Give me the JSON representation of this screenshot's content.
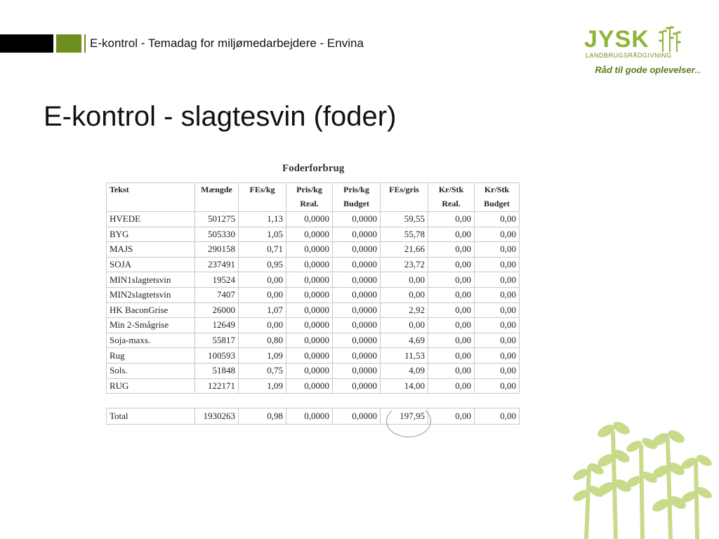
{
  "header": {
    "title": "E-kontrol - Temadag for miljømedarbejdere - Envina"
  },
  "logo": {
    "main": "JYSK",
    "sub": "LANDBRUGSRÅDGIVNING",
    "tagline": "Råd til gode oplevelser",
    "tagline_suffix": "..."
  },
  "slide": {
    "title": "E-kontrol - slagtesvin (foder)"
  },
  "table": {
    "caption": "Foderforbrug",
    "columns": [
      {
        "l1": "Tekst",
        "l2": ""
      },
      {
        "l1": "Mængde",
        "l2": ""
      },
      {
        "l1": "FEs/kg",
        "l2": ""
      },
      {
        "l1": "Pris/kg",
        "l2": "Real."
      },
      {
        "l1": "Pris/kg",
        "l2": "Budget"
      },
      {
        "l1": "FEs/gris",
        "l2": ""
      },
      {
        "l1": "Kr/Stk",
        "l2": "Real."
      },
      {
        "l1": "Kr/Stk",
        "l2": "Budget"
      }
    ],
    "rows": [
      [
        "HVEDE",
        "501275",
        "1,13",
        "0,0000",
        "0,0000",
        "59,55",
        "0,00",
        "0,00"
      ],
      [
        "BYG",
        "505330",
        "1,05",
        "0,0000",
        "0,0000",
        "55,78",
        "0,00",
        "0,00"
      ],
      [
        "MAJS",
        "290158",
        "0,71",
        "0,0000",
        "0,0000",
        "21,66",
        "0,00",
        "0,00"
      ],
      [
        "SOJA",
        "237491",
        "0,95",
        "0,0000",
        "0,0000",
        "23,72",
        "0,00",
        "0,00"
      ],
      [
        "MIN1slagtetsvin",
        "19524",
        "0,00",
        "0,0000",
        "0,0000",
        "0,00",
        "0,00",
        "0,00"
      ],
      [
        "MIN2slagtetsvin",
        "7407",
        "0,00",
        "0,0000",
        "0,0000",
        "0,00",
        "0,00",
        "0,00"
      ],
      [
        "HK BaconGrise",
        "26000",
        "1,07",
        "0,0000",
        "0,0000",
        "2,92",
        "0,00",
        "0,00"
      ],
      [
        "Min 2-Smågrise",
        "12649",
        "0,00",
        "0,0000",
        "0,0000",
        "0,00",
        "0,00",
        "0,00"
      ],
      [
        "Soja-maxs.",
        "55817",
        "0,80",
        "0,0000",
        "0,0000",
        "4,69",
        "0,00",
        "0,00"
      ],
      [
        "Rug",
        "100593",
        "1,09",
        "0,0000",
        "0,0000",
        "11,53",
        "0,00",
        "0,00"
      ],
      [
        "Sols.",
        "51848",
        "0,75",
        "0,0000",
        "0,0000",
        "4,09",
        "0,00",
        "0,00"
      ],
      [
        "RUG",
        "122171",
        "1,09",
        "0,0000",
        "0,0000",
        "14,00",
        "0,00",
        "0,00"
      ]
    ],
    "total": [
      "Total",
      "1930263",
      "0,98",
      "0,0000",
      "0,0000",
      "197,95",
      "0,00",
      "0,00"
    ]
  },
  "colors": {
    "accent_olive": "#6e8f1e",
    "logo_green": "#8fb43a",
    "plant_green": "#c8db8a"
  }
}
